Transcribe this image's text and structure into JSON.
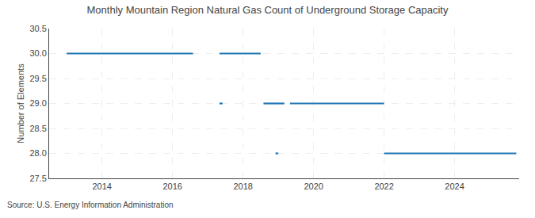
{
  "chart_data": {
    "type": "line",
    "title": "Monthly Mountain Region Natural Gas Count of Underground Storage Capacity",
    "ylabel": "Number of Elements",
    "annotations": [
      "Source: U.S. Energy Information Administration"
    ],
    "x": [
      2013.0,
      2016.58,
      null,
      2017.33,
      2018.5,
      null,
      2017.33,
      2017.42,
      null,
      2018.58,
      2019.17,
      null,
      2019.33,
      2022.0,
      null,
      2018.92,
      2019.0,
      null,
      2022.0,
      2025.75
    ],
    "values": [
      30,
      30,
      null,
      30,
      30,
      null,
      29,
      29,
      null,
      29,
      29,
      null,
      29,
      29,
      null,
      28,
      28,
      null,
      28,
      28
    ],
    "xlim": [
      2012.5,
      2025.83
    ],
    "xticks": [
      2014,
      2016,
      2018,
      2020,
      2022,
      2024
    ],
    "ylim": [
      27.5,
      30.5
    ],
    "yticks": [
      27.5,
      {
        "value": 28,
        "label": "28.0"
      },
      28.5,
      {
        "value": 29,
        "label": "29.0"
      },
      29.5,
      {
        "value": 30,
        "label": "30.0"
      },
      30.5
    ],
    "grid": true
  }
}
